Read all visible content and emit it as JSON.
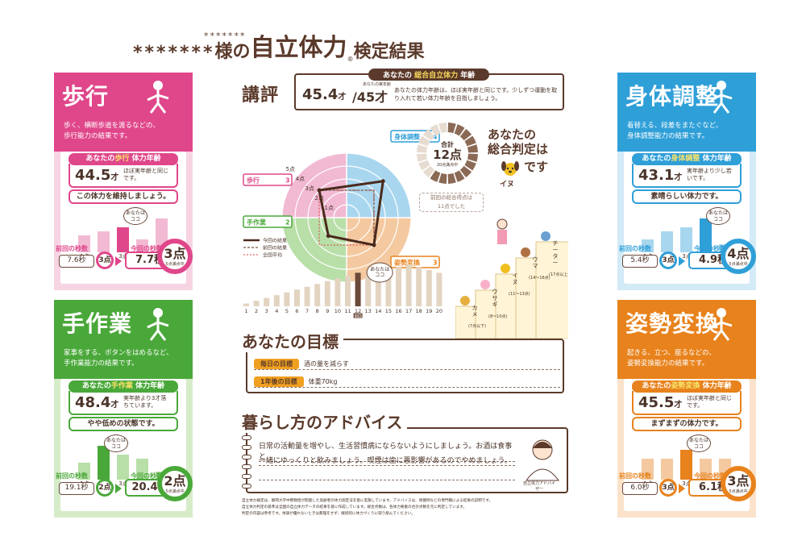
{
  "title": {
    "name_small": "*******",
    "name": "*******",
    "sama": "様の",
    "main": "自立体力",
    "reg": "®",
    "suffix": "検定結果"
  },
  "colors": {
    "walk": "#e0468a",
    "walk_light": "#f2b9d3",
    "hand": "#4aa83a",
    "hand_light": "#b8dfa8",
    "body": "#2f9fd8",
    "body_light": "#a9d6ef",
    "posture": "#e8821c",
    "posture_light": "#f4c9a0",
    "brown": "#5b3a2b",
    "gold": "#f0a020"
  },
  "walk": {
    "title": "歩行",
    "desc1": "歩く、横断歩道を渡るなどの、",
    "desc2": "歩行能力の結果です。",
    "age_label_pre": "あなたの",
    "age_label_hl": "歩行",
    "age_label_post": " 体力年齢",
    "age": "44.5",
    "age_unit": "才",
    "age_note": "ほぼ実年齢と同じです。",
    "verdict": "この体力を維持しましょう。",
    "bars": [
      {
        "label": "1点",
        "value": 2
      },
      {
        "label": "2点",
        "value": 2.5
      },
      {
        "label": "3点",
        "value": 3
      },
      {
        "label": "4点",
        "value": 1.5
      },
      {
        "label": "5点",
        "value": 4
      }
    ],
    "highlight_index": 2,
    "bubble": "あなたは\nココ",
    "prev_label": "前回の秒数",
    "prev_value": "7.6秒",
    "prev_point": "3点",
    "now_label": "今回の秒数",
    "now_value": "7.7秒",
    "now_point": "3点",
    "now_sub": "5点満点中"
  },
  "hand": {
    "title": "手作業",
    "desc1": "家事をする、ボタンをはめるなど、",
    "desc2": "手作業能力の結果です。",
    "age_label_pre": "あなたの",
    "age_label_hl": "手作業",
    "age_label_post": " 体力年齢",
    "age": "48.4",
    "age_unit": "才",
    "age_note": "実年齢より3才落ちています。",
    "verdict": "やや低めの状態です。",
    "bars": [
      {
        "label": "1点",
        "value": 2
      },
      {
        "label": "2点",
        "value": 4
      },
      {
        "label": "3点",
        "value": 3
      },
      {
        "label": "4点",
        "value": 2.5
      },
      {
        "label": "5点",
        "value": 1
      }
    ],
    "highlight_index": 1,
    "bubble": "あなたは\nココ",
    "prev_label": "前回の秒数",
    "prev_value": "19.1秒",
    "prev_point": "2点",
    "now_label": "今回の秒数",
    "now_value": "20.4秒",
    "now_point": "2点",
    "now_sub": "5点満点中"
  },
  "body": {
    "title": "身体調整",
    "desc1": "着替える、段差をまたぐなど、",
    "desc2": "身体調整能力の結果です。",
    "age_label_pre": "あなたの",
    "age_label_hl": "身体調整",
    "age_label_post": " 体力年齢",
    "age": "43.1",
    "age_unit": "才",
    "age_note": "実年齢より少し若いです。",
    "verdict": "素晴らしい体力です。",
    "bars": [
      {
        "label": "1点",
        "value": 1.5
      },
      {
        "label": "2点",
        "value": 2.5
      },
      {
        "label": "3点",
        "value": 3
      },
      {
        "label": "4点",
        "value": 4
      },
      {
        "label": "5点",
        "value": 1
      }
    ],
    "highlight_index": 3,
    "bubble": "あなたは\nココ",
    "prev_label": "前回の秒数",
    "prev_value": "5.4秒",
    "prev_point": "3点",
    "now_label": "今回の秒数",
    "now_value": "4.9秒",
    "now_point": "4点",
    "now_sub": "5点満点中"
  },
  "posture": {
    "title": "姿勢変換",
    "desc1": "起きる、立つ、座るなどの、",
    "desc2": "姿勢変換能力の結果です。",
    "age_label_pre": "あなたの",
    "age_label_hl": "姿勢変換",
    "age_label_post": " 体力年齢",
    "age": "45.5",
    "age_unit": "才",
    "age_note": "ほぼ実年齢と同じです。",
    "verdict": "まずまずの体力です。",
    "bars": [
      {
        "label": "1点",
        "value": 2.5
      },
      {
        "label": "2点",
        "value": 2.5
      },
      {
        "label": "3点",
        "value": 3.5
      },
      {
        "label": "4点",
        "value": 2.5
      },
      {
        "label": "5点",
        "value": 2.5
      }
    ],
    "highlight_index": 2,
    "bubble": "あなたは\nココ",
    "prev_label": "前回の秒数",
    "prev_value": "6.0秒",
    "prev_point": "3点",
    "now_label": "今回の秒数",
    "now_value": "6.1秒",
    "now_point": "3点",
    "now_sub": "5点満点中"
  },
  "review": {
    "title": "講評",
    "age_label_pre": "あなたの ",
    "age_label_hl": "総合自立体力",
    "age_label_post": " 年齢",
    "age": "45.4",
    "age_unit": "才",
    "real_age_note": "あなたの実年齢",
    "real_age": "45才",
    "desc": "あなたの体力年齢は、ほぼ実年齢と同じです。少しずつ運動を取り入れて若い体力年齢を目指しましょう。"
  },
  "radar": {
    "axes": [
      {
        "label": "身体調整",
        "score": "4"
      },
      {
        "label": "姿勢変換",
        "score": "3"
      },
      {
        "label": "手作業",
        "score": "2"
      },
      {
        "label": "歩行",
        "score": "3"
      }
    ],
    "rings": [
      "1点",
      "2点",
      "3点",
      "4点",
      "5点"
    ],
    "current": [
      4,
      3,
      2,
      3
    ],
    "previous": [
      3,
      3,
      2,
      3
    ],
    "average": [
      3,
      3,
      3,
      3
    ],
    "legend": [
      "今回の結果",
      "前回の結果",
      "全国平均"
    ]
  },
  "total": {
    "label": "合計",
    "value": "12点",
    "sub": "20点満点中",
    "segments": 20,
    "filled": 12,
    "prev_note": "前回の総合得点は\n11点でした",
    "judge_line1": "あなたの",
    "judge_line2": "総合判定は",
    "judge_animal": "イヌ",
    "judge_desu": "です"
  },
  "age_chart": {
    "type": "bar",
    "categories": [
      "1",
      "2",
      "3",
      "4",
      "5",
      "6",
      "7",
      "8",
      "9",
      "10",
      "11",
      "12",
      "13",
      "14",
      "15",
      "16",
      "17",
      "18",
      "19",
      "20"
    ],
    "values": [
      1,
      2,
      3,
      4,
      5,
      6,
      7,
      8,
      9,
      10,
      11,
      12,
      11,
      12,
      13,
      14,
      15,
      14,
      13,
      12
    ],
    "highlight": 12,
    "highlight_label": "前回",
    "bubble": "あなたは\nココ"
  },
  "stairs": {
    "animals": [
      {
        "name": "カメ",
        "range": "7点以下"
      },
      {
        "name": "ウサギ",
        "range": "8〜10点"
      },
      {
        "name": "イヌ",
        "range": "11〜13点"
      },
      {
        "name": "ウマ",
        "range": "14〜16点"
      },
      {
        "name": "チーター",
        "range": "17点以上"
      }
    ]
  },
  "goals": {
    "title": "あなたの目標",
    "daily_tag": "毎日の目標",
    "daily_text": "酒の量を減らす",
    "year_tag": "1年後の目標",
    "year_text": "体重70kg"
  },
  "advice": {
    "title": "暮らし方のアドバイス",
    "line1": "日常の活動量を増やし、生活習慣病にならないようにしましょう。お酒は食事と",
    "line2": "一緒にゆっくりと飲みましょう。喫煙は歯に悪影響があるのでやめましょう。",
    "advisor": "自立体力アドバイザー"
  },
  "footer": {
    "line1": "自立体力検定は、静岡大学中野教授が開発した高齢者の体力測定法を基に実施しています。アドバイスは、保健師などの専門職による結果の説明です。",
    "line2": "自立体力判定の基準は全国の自立体力データの結果を基に作成しています。総合点数は、各体力要素の合計点数を元に判定しています。",
    "line3": "判定の内容は参考です。体調が優れないときは無理をせず、継続的に体力づくりに取り組んでください。"
  }
}
